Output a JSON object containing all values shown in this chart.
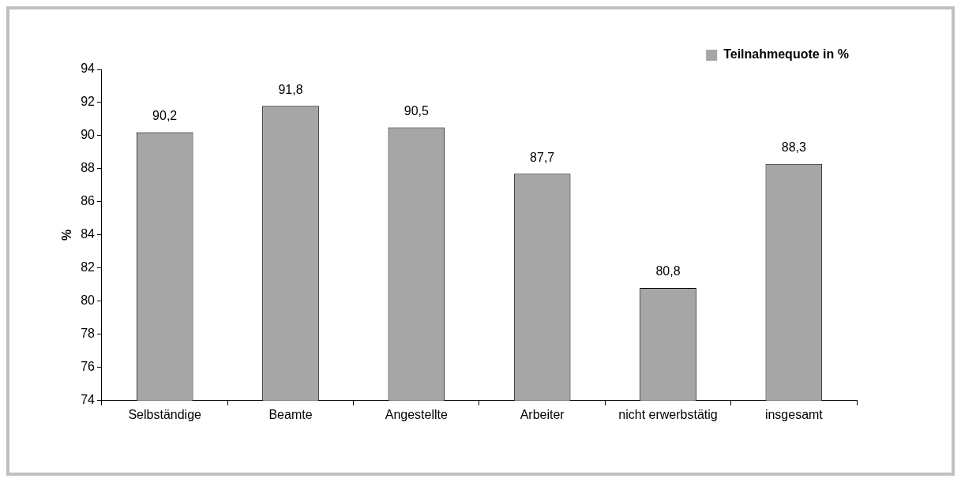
{
  "chart_data": {
    "type": "bar",
    "ylabel": "%",
    "categories": [
      "Selbständige",
      "Beamte",
      "Angestellte",
      "Arbeiter",
      "nicht erwerbstätig",
      "insgesamt"
    ],
    "series": [
      {
        "name": "Teilnahmequote in %",
        "color": "#a6a6a6",
        "values": [
          90.2,
          91.8,
          90.5,
          87.7,
          80.8,
          88.3
        ],
        "value_labels": [
          "90,2",
          "91,8",
          "90,5",
          "87,7",
          "80,8",
          "88,3"
        ]
      }
    ],
    "ylim": [
      74,
      94
    ],
    "yticks": [
      74,
      76,
      78,
      80,
      82,
      84,
      86,
      88,
      90,
      92,
      94
    ],
    "grid": false,
    "legend": "top right"
  }
}
